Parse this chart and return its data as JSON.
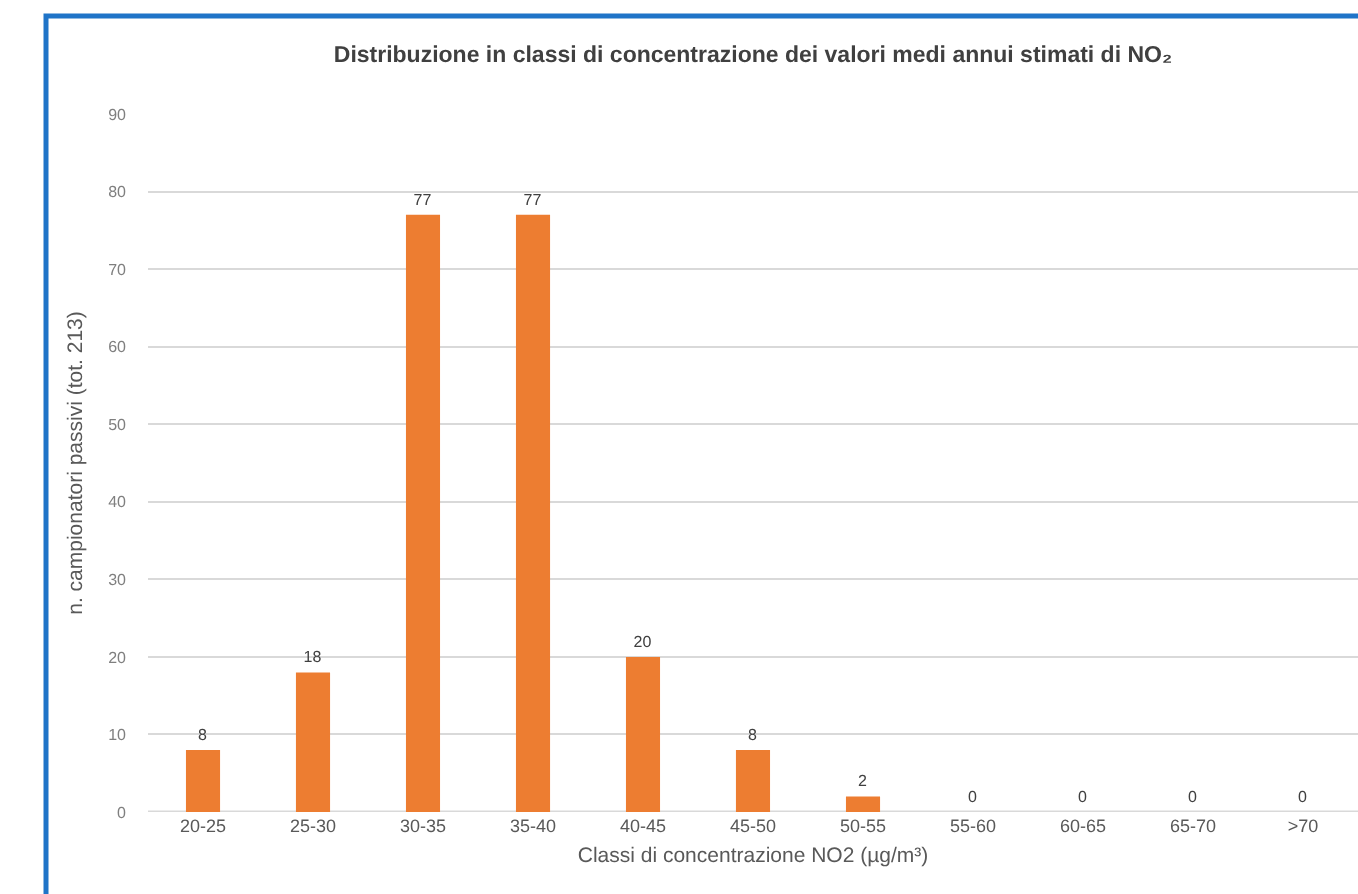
{
  "chart_data": {
    "type": "bar",
    "title": "Distribuzione in classi di concentrazione dei valori medi annui stimati di NO₂",
    "xlabel": "Classi di concentrazione NO2 (µg/m³)",
    "ylabel": "n. campionatori passivi (tot. 213)",
    "categories": [
      "20-25",
      "25-30",
      "30-35",
      "35-40",
      "40-45",
      "45-50",
      "50-55",
      "55-60",
      "60-65",
      "65-70",
      ">70"
    ],
    "values": [
      8,
      18,
      77,
      77,
      20,
      8,
      2,
      0,
      0,
      0,
      0
    ],
    "color": "#ed7d31",
    "ylim": [
      0,
      90
    ],
    "yticks": [
      0,
      10,
      20,
      30,
      40,
      50,
      60,
      70,
      80,
      90
    ],
    "grid": "y",
    "data_labels": true
  }
}
